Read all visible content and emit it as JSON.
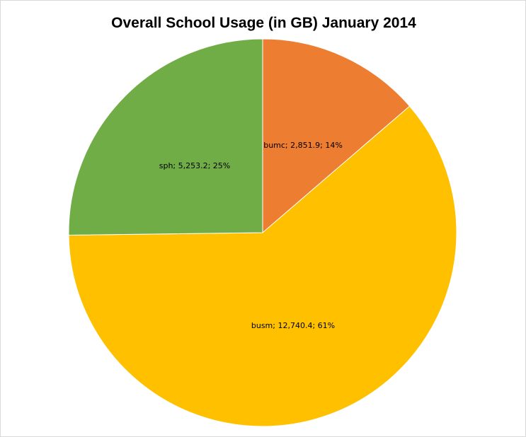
{
  "chart_data": {
    "type": "pie",
    "title": "Overall School Usage (in GB) January 2014",
    "slices": [
      {
        "name": "bumc",
        "value": 2851.9,
        "value_label": "2,851.9",
        "percent": "14%",
        "color": "#ED7D31"
      },
      {
        "name": "busm",
        "value": 12740.4,
        "value_label": "12,740.4",
        "percent": "61%",
        "color": "#FFC000"
      },
      {
        "name": "sph",
        "value": 5253.2,
        "value_label": "5,253.2",
        "percent": "25%",
        "color": "#70AD47"
      }
    ],
    "start_angle_deg": 0,
    "direction": "clockwise",
    "legend": "none"
  }
}
